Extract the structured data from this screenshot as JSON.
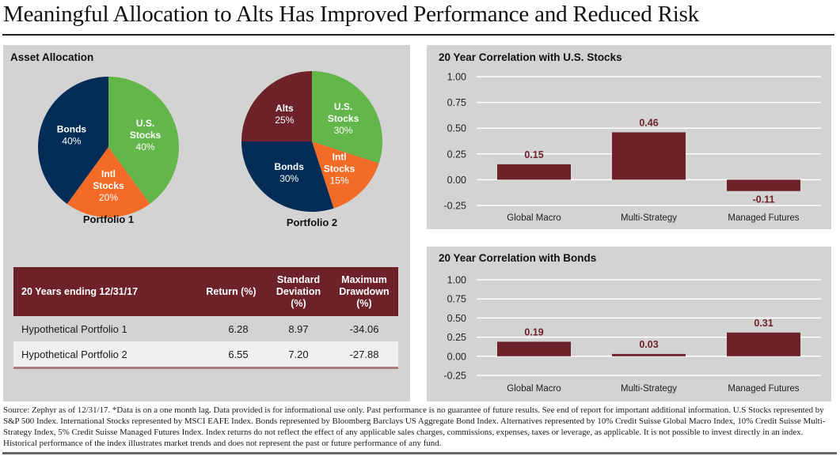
{
  "page": {
    "title": "Meaningful Allocation to Alts Has Improved Performance and Reduced Risk"
  },
  "colors": {
    "us_stocks": "#62b64a",
    "intl_stocks": "#f26c27",
    "bonds": "#032c56",
    "alts": "#6d2229",
    "bar": "#6d2229",
    "value_label": "#6d2229",
    "panel_bg": "#d2d3d2"
  },
  "allocation": {
    "panel_title": "Asset Allocation",
    "portfolios": [
      {
        "name": "Portfolio 1",
        "slices": [
          {
            "line1": "U.S.",
            "line2": "Stocks",
            "pct_label": "40%",
            "value": 40,
            "color_key": "us_stocks"
          },
          {
            "line1": "Intl",
            "line2": "Stocks",
            "pct_label": "20%",
            "value": 20,
            "color_key": "intl_stocks"
          },
          {
            "line1": "Bonds",
            "line2": "",
            "pct_label": "40%",
            "value": 40,
            "color_key": "bonds"
          }
        ]
      },
      {
        "name": "Portfolio 2",
        "slices": [
          {
            "line1": "U.S.",
            "line2": "Stocks",
            "pct_label": "30%",
            "value": 30,
            "color_key": "us_stocks"
          },
          {
            "line1": "Intl",
            "line2": "Stocks",
            "pct_label": "15%",
            "value": 15,
            "color_key": "intl_stocks"
          },
          {
            "line1": "Bonds",
            "line2": "",
            "pct_label": "30%",
            "value": 30,
            "color_key": "bonds"
          },
          {
            "line1": "Alts",
            "line2": "",
            "pct_label": "25%",
            "value": 25,
            "color_key": "alts"
          }
        ]
      }
    ]
  },
  "table": {
    "headers": [
      "20 Years ending 12/31/17",
      "Return (%)",
      "Standard Deviation (%)",
      "Maximum Drawdown (%)"
    ],
    "header_lines": {
      "return": [
        "Return (%)"
      ],
      "std": [
        "Standard",
        "Deviation",
        "(%)"
      ],
      "dd": [
        "Maximum",
        "Drawdown",
        "(%)"
      ]
    },
    "rows": [
      {
        "name": "Hypothetical Portfolio 1",
        "return": "6.28",
        "std": "8.97",
        "drawdown": "-34.06"
      },
      {
        "name": "Hypothetical Portfolio 2",
        "return": "6.55",
        "std": "7.20",
        "drawdown": "-27.88"
      }
    ]
  },
  "chart_data": [
    {
      "type": "pie",
      "title": "Portfolio 1",
      "categories": [
        "U.S. Stocks",
        "Intl Stocks",
        "Bonds"
      ],
      "values": [
        40,
        20,
        40
      ]
    },
    {
      "type": "pie",
      "title": "Portfolio 2",
      "categories": [
        "U.S. Stocks",
        "Intl Stocks",
        "Bonds",
        "Alts"
      ],
      "values": [
        30,
        15,
        30,
        25
      ]
    },
    {
      "type": "bar",
      "title": "20 Year Correlation with U.S. Stocks",
      "categories": [
        "Global Macro",
        "Multi-Strategy",
        "Managed Futures"
      ],
      "values": [
        0.15,
        0.46,
        -0.11
      ],
      "value_labels": [
        "0.15",
        "0.46",
        "-0.11"
      ],
      "xlabel": "",
      "ylabel": "",
      "ylim": [
        -0.25,
        1.0
      ],
      "yticks": [
        "1.00",
        "0.75",
        "0.50",
        "0.25",
        "0.00",
        "-0.25"
      ],
      "ytick_values": [
        1.0,
        0.75,
        0.5,
        0.25,
        0.0,
        -0.25
      ],
      "grid": true
    },
    {
      "type": "bar",
      "title": "20 Year Correlation with Bonds",
      "categories": [
        "Global Macro",
        "Multi-Strategy",
        "Managed Futures"
      ],
      "values": [
        0.19,
        0.03,
        0.31
      ],
      "value_labels": [
        "0.19",
        "0.03",
        "0.31"
      ],
      "xlabel": "",
      "ylabel": "",
      "ylim": [
        -0.25,
        1.0
      ],
      "yticks": [
        "1.00",
        "0.75",
        "0.50",
        "0.25",
        "0.00",
        "-0.25"
      ],
      "ytick_values": [
        1.0,
        0.75,
        0.5,
        0.25,
        0.0,
        -0.25
      ],
      "grid": true
    }
  ],
  "footnote": "Source: Zephyr as of 12/31/17.  *Data is on a one month lag.  Data provided is for informational use only. Past performance is no guarantee of future results. See end of report for important additional information. U.S Stocks represented by S&P 500 Index.  International Stocks represented by MSCI EAFE Index.  Bonds represented by Bloomberg Barclays US Aggregate Bond Index.  Alternatives represented by 10% Credit Suisse Global Macro Index, 10% Credit Suisse Multi-Strategy Index, 5% Credit Suisse Managed Futures Index. Index returns do not reflect the effect of any applicable sales charges, commissions, expenses, taxes or leverage, as applicable. It is not possible to invest directly in an index. Historical performance of the index illustrates market trends and does not represent the past or future performance of any fund."
}
